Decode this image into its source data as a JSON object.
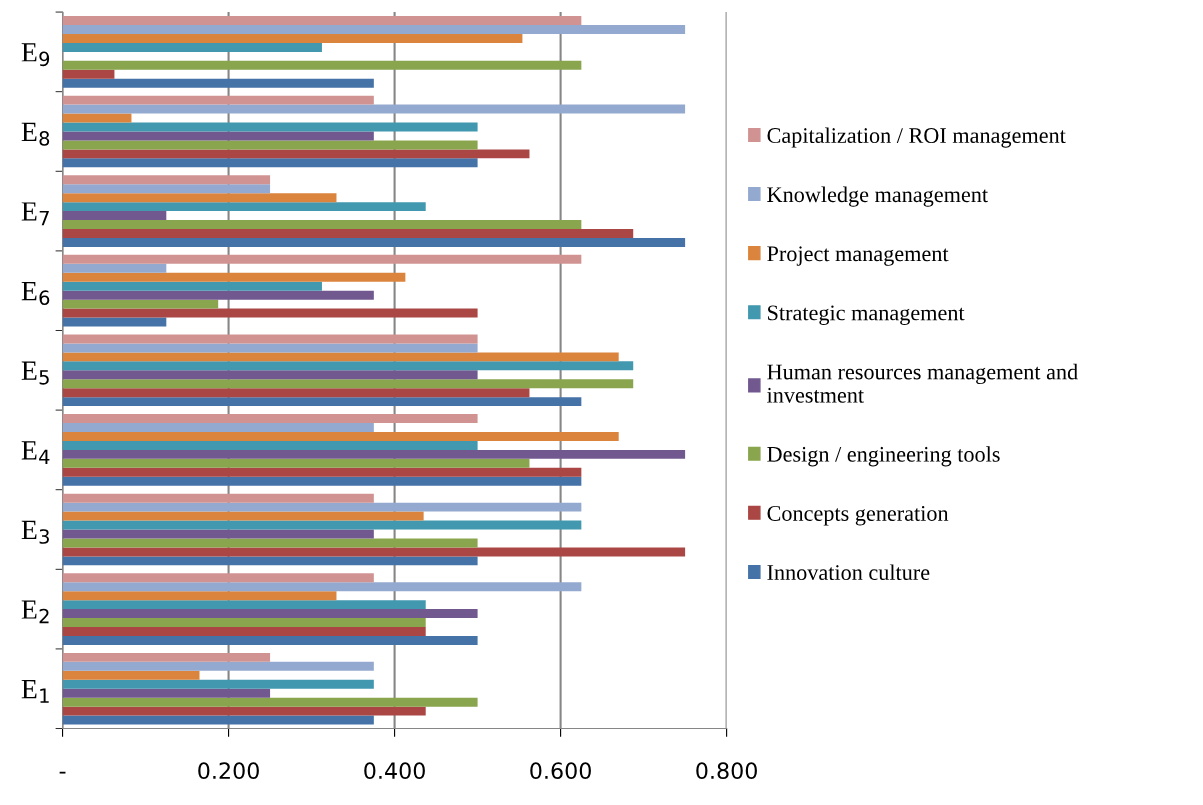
{
  "chart_data": {
    "type": "bar",
    "orientation": "horizontal",
    "categories": [
      "E$_{9}$",
      "E$_{8}$",
      "E$_{7}$",
      "E$_{6}$",
      "E$_{5}$",
      "E$_{4}$",
      "E$_{3}$",
      "E$_{2}$",
      "E$_{1}$"
    ],
    "series": [
      {
        "name": "Innovation culture",
        "color": "#4572a7",
        "values": [
          0.375,
          0.5,
          0.75,
          0.125,
          0.625,
          0.625,
          0.5,
          0.5,
          0.375
        ]
      },
      {
        "name": "Concepts generation",
        "color": "#aa4643",
        "values": [
          0.0625,
          0.5625,
          0.6875,
          0.5,
          0.5625,
          0.625,
          0.75,
          0.4375,
          0.4375
        ]
      },
      {
        "name": "Design / engineering tools",
        "color": "#89a54e",
        "values": [
          0.625,
          0.5,
          0.625,
          0.1875,
          0.6875,
          0.5625,
          0.5,
          0.4375,
          0.5
        ]
      },
      {
        "name": "Human resources management and investment",
        "color": "#71588f",
        "values": [
          0,
          0.375,
          0.125,
          0.375,
          0.5,
          0.75,
          0.375,
          0.5,
          0.25
        ]
      },
      {
        "name": "Strategic management",
        "color": "#4198af",
        "values": [
          0.3125,
          0.5,
          0.4375,
          0.3125,
          0.6875,
          0.5,
          0.625,
          0.4375,
          0.375
        ]
      },
      {
        "name": "Project management",
        "color": "#db843d",
        "values": [
          0.554,
          0.083,
          0.33,
          0.413,
          0.67,
          0.67,
          0.435,
          0.33,
          0.165
        ]
      },
      {
        "name": "Knowledge management",
        "color": "#93a9cf",
        "values": [
          0.75,
          0.75,
          0.25,
          0.125,
          0.5,
          0.375,
          0.625,
          0.625,
          0.375
        ]
      },
      {
        "name": "Capitalization / ROI management",
        "color": "#d19392",
        "values": [
          0.625,
          0.375,
          0.25,
          0.625,
          0.5,
          0.5,
          0.375,
          0.375,
          0.25
        ]
      }
    ],
    "xlim": [
      0,
      0.8
    ],
    "xticks": [
      {
        "value": 0,
        "label": "-"
      },
      {
        "value": 0.2,
        "label": "0.200"
      },
      {
        "value": 0.4,
        "label": "0.400"
      },
      {
        "value": 0.6,
        "label": "0.600"
      },
      {
        "value": 0.8,
        "label": "0.800"
      }
    ],
    "grid": "x",
    "legend": "right"
  }
}
